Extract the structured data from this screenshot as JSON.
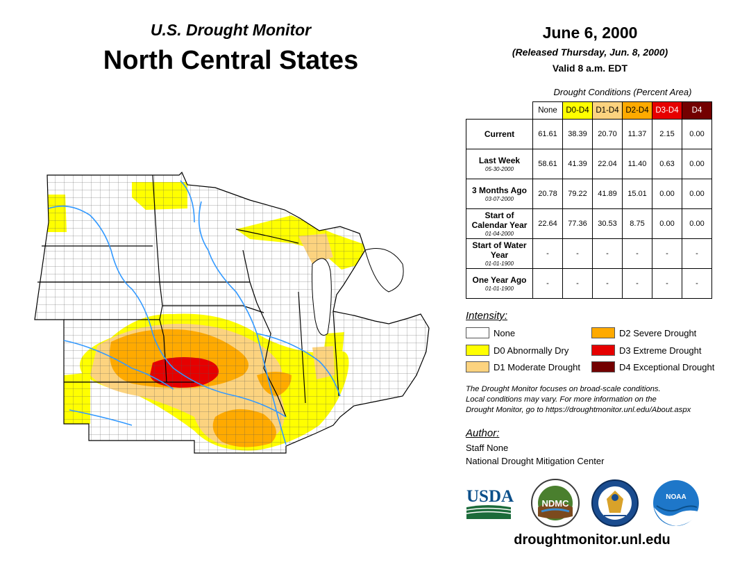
{
  "header": {
    "subtitle": "U.S. Drought Monitor",
    "title": "North Central States"
  },
  "date_block": {
    "date": "June 6, 2000",
    "released": "(Released Thursday, Jun. 8, 2000)",
    "valid": "Valid 8 a.m. EDT"
  },
  "conditions": {
    "caption": "Drought Conditions (Percent Area)",
    "columns": [
      {
        "label": "None",
        "color": "#ffffff",
        "text_color": "#000000"
      },
      {
        "label": "D0-D4",
        "color": "#ffff00",
        "text_color": "#000000"
      },
      {
        "label": "D1-D4",
        "color": "#fcd37f",
        "text_color": "#000000"
      },
      {
        "label": "D2-D4",
        "color": "#ffaa00",
        "text_color": "#000000"
      },
      {
        "label": "D3-D4",
        "color": "#e60000",
        "text_color": "#ffffff"
      },
      {
        "label": "D4",
        "color": "#730000",
        "text_color": "#ffffff"
      }
    ],
    "rows": [
      {
        "label": "Current",
        "sub": "",
        "values": [
          "61.61",
          "38.39",
          "20.70",
          "11.37",
          "2.15",
          "0.00"
        ]
      },
      {
        "label": "Last Week",
        "sub": "05-30-2000",
        "values": [
          "58.61",
          "41.39",
          "22.04",
          "11.40",
          "0.63",
          "0.00"
        ]
      },
      {
        "label": "3 Months Ago",
        "sub": "03-07-2000",
        "values": [
          "20.78",
          "79.22",
          "41.89",
          "15.01",
          "0.00",
          "0.00"
        ]
      },
      {
        "label": "Start of Calendar Year",
        "sub": "01-04-2000",
        "values": [
          "22.64",
          "77.36",
          "30.53",
          "8.75",
          "0.00",
          "0.00"
        ]
      },
      {
        "label": "Start of Water Year",
        "sub": "01-01-1900",
        "values": [
          "-",
          "-",
          "-",
          "-",
          "-",
          "-"
        ]
      },
      {
        "label": "One Year Ago",
        "sub": "01-01-1900",
        "values": [
          "-",
          "-",
          "-",
          "-",
          "-",
          "-"
        ]
      }
    ]
  },
  "legend": {
    "title": "Intensity:",
    "items": [
      {
        "label": "None",
        "color": "#ffffff"
      },
      {
        "label": "D0 Abnormally Dry",
        "color": "#ffff00"
      },
      {
        "label": "D1 Moderate Drought",
        "color": "#fcd37f"
      },
      {
        "label": "D2 Severe Drought",
        "color": "#ffaa00"
      },
      {
        "label": "D3 Extreme Drought",
        "color": "#e60000"
      },
      {
        "label": "D4 Exceptional Drought",
        "color": "#730000"
      }
    ]
  },
  "note": {
    "line1": "The Drought Monitor focuses on broad-scale conditions.",
    "line2": "Local conditions may vary. For more information on the",
    "line3": "Drought Monitor, go to https://droughtmonitor.unl.edu/About.aspx"
  },
  "author": {
    "title": "Author:",
    "name": "Staff None",
    "org": "National Drought Mitigation Center"
  },
  "logos": {
    "usda": "USDA",
    "ndmc": "NDMC",
    "noaa": "NOAA"
  },
  "footer": {
    "url": "droughtmonitor.unl.edu"
  },
  "map_colors": {
    "water": "#3399ff",
    "county_line": "#555555",
    "state_line": "#000000"
  }
}
